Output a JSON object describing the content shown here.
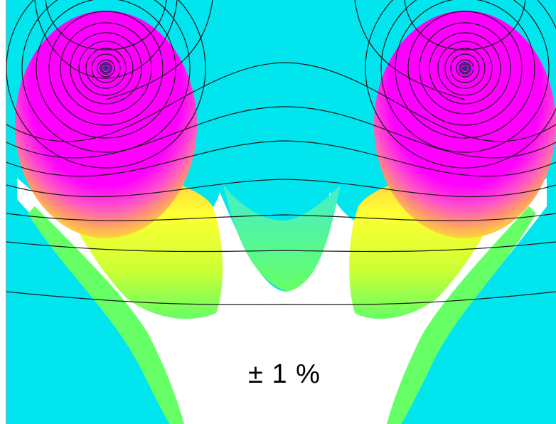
{
  "annotation": {
    "tolerance_text": "± 1 %"
  },
  "colors": {
    "background": "#00E5EE",
    "white_region": "#FFFFFF",
    "high_field": "#FF00FF",
    "mid_high": "#FF66CC",
    "orange": "#FFB347",
    "yellow": "#FFFF33",
    "yellow_green": "#CCFF33",
    "green": "#66FF66",
    "field_lines": "#1a1a1a",
    "coil_marker": "#3a2a8a"
  },
  "elements": {
    "coils": [
      "left-coil-icon",
      "right-coil-icon"
    ]
  }
}
